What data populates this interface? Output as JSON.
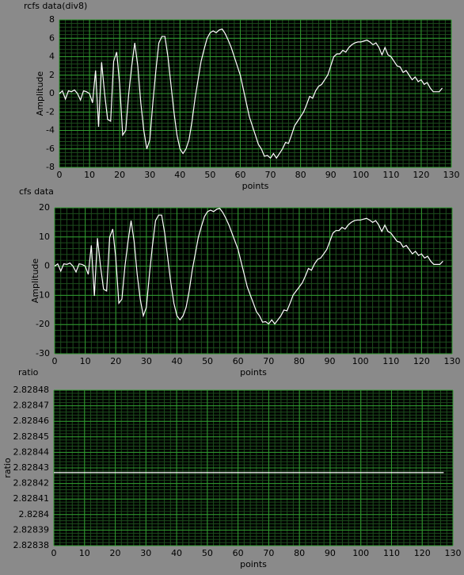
{
  "chart_data": [
    {
      "type": "line",
      "title": "rcfs data(div8)",
      "x_label": "points",
      "y_label": "Amplitude",
      "color": "#ffffff",
      "grid": true,
      "x": [
        0,
        1,
        2,
        3,
        4,
        5,
        6,
        7,
        8,
        9,
        10,
        11,
        12,
        13,
        14,
        15,
        16,
        17,
        18,
        19,
        20,
        21,
        22,
        23,
        24,
        25,
        26,
        27,
        28,
        29,
        30,
        31,
        32,
        33,
        34,
        35,
        36,
        37,
        38,
        39,
        40,
        41,
        42,
        43,
        44,
        45,
        46,
        47,
        48,
        49,
        50,
        51,
        52,
        53,
        54,
        55,
        56,
        57,
        58,
        59,
        60,
        61,
        62,
        63,
        64,
        65,
        66,
        67,
        68,
        69,
        70,
        71,
        72,
        73,
        74,
        75,
        76,
        77,
        78,
        79,
        80,
        81,
        82,
        83,
        84,
        85,
        86,
        87,
        88,
        89,
        90,
        91,
        92,
        93,
        94,
        95,
        96,
        97,
        98,
        99,
        100,
        101,
        102,
        103,
        104,
        105,
        106,
        107,
        108,
        109,
        110,
        111,
        112,
        113,
        114,
        115,
        116,
        117,
        118,
        119,
        120,
        121,
        122,
        123,
        124,
        125,
        126,
        127
      ],
      "values": [
        0,
        0.3,
        -0.6,
        0.3,
        0.2,
        0.4,
        0,
        -0.7,
        0.3,
        0.2,
        0,
        -1,
        2.5,
        -3.6,
        3.4,
        0,
        -2.8,
        -3,
        3.5,
        4.5,
        1,
        -4.5,
        -4,
        0,
        3,
        5.5,
        3,
        -1,
        -4,
        -6,
        -5,
        -1,
        2.5,
        5.5,
        6.2,
        6.2,
        4,
        1,
        -2,
        -4.5,
        -6,
        -6.5,
        -6,
        -5,
        -3,
        -0.5,
        1.5,
        3.5,
        4.8,
        6,
        6.6,
        6.8,
        6.6,
        6.9,
        7,
        6.5,
        5.8,
        5,
        4,
        3,
        2,
        0.5,
        -1,
        -2.5,
        -3.5,
        -4.5,
        -5.5,
        -6,
        -6.8,
        -6.7,
        -7,
        -6.5,
        -7,
        -6.5,
        -6,
        -5.3,
        -5.4,
        -4.5,
        -3.5,
        -3,
        -2.5,
        -2,
        -1.2,
        -0.3,
        -0.5,
        0.3,
        0.8,
        1,
        1.5,
        2,
        3,
        4,
        4.3,
        4.3,
        4.7,
        4.5,
        5,
        5.3,
        5.5,
        5.6,
        5.6,
        5.7,
        5.8,
        5.6,
        5.3,
        5.5,
        5,
        4.2,
        5,
        4.2,
        4,
        3.5,
        3,
        2.9,
        2.3,
        2.5,
        2,
        1.5,
        1.8,
        1.3,
        1.5,
        1,
        1.2,
        0.6,
        0.2,
        0.2,
        0.2,
        0.6
      ],
      "xlim": [
        0,
        130
      ],
      "xticks": [
        0,
        10,
        20,
        30,
        40,
        50,
        60,
        70,
        80,
        90,
        100,
        110,
        120,
        130
      ],
      "ylim": [
        -8,
        8
      ],
      "yticks": [
        -8,
        -6,
        -4,
        -2,
        0,
        2,
        4,
        6,
        8
      ]
    },
    {
      "type": "line",
      "title": "cfs data",
      "x_label": "points",
      "y_label": "Amplitude",
      "color": "#ffffff",
      "grid": true,
      "x": [
        0,
        1,
        2,
        3,
        4,
        5,
        6,
        7,
        8,
        9,
        10,
        11,
        12,
        13,
        14,
        15,
        16,
        17,
        18,
        19,
        20,
        21,
        22,
        23,
        24,
        25,
        26,
        27,
        28,
        29,
        30,
        31,
        32,
        33,
        34,
        35,
        36,
        37,
        38,
        39,
        40,
        41,
        42,
        43,
        44,
        45,
        46,
        47,
        48,
        49,
        50,
        51,
        52,
        53,
        54,
        55,
        56,
        57,
        58,
        59,
        60,
        61,
        62,
        63,
        64,
        65,
        66,
        67,
        68,
        69,
        70,
        71,
        72,
        73,
        74,
        75,
        76,
        77,
        78,
        79,
        80,
        81,
        82,
        83,
        84,
        85,
        86,
        87,
        88,
        89,
        90,
        91,
        92,
        93,
        94,
        95,
        96,
        97,
        98,
        99,
        100,
        101,
        102,
        103,
        104,
        105,
        106,
        107,
        108,
        109,
        110,
        111,
        112,
        113,
        114,
        115,
        116,
        117,
        118,
        119,
        120,
        121,
        122,
        123,
        124,
        125,
        126,
        127
      ],
      "values": [
        0,
        0.8,
        -1.7,
        0.8,
        0.6,
        1.1,
        0,
        -2,
        0.8,
        0.6,
        0,
        -2.8,
        7.1,
        -10.2,
        9.6,
        0,
        -7.9,
        -8.5,
        9.9,
        12.7,
        2.8,
        -12.7,
        -11.3,
        0,
        8.5,
        15.6,
        8.5,
        -2.8,
        -11.3,
        -17,
        -14.1,
        -2.8,
        7.1,
        15.6,
        17.5,
        17.5,
        11.3,
        2.8,
        -5.7,
        -12.7,
        -17,
        -18.4,
        -17,
        -14.1,
        -8.5,
        -1.4,
        4.2,
        9.9,
        13.6,
        17,
        18.7,
        19.2,
        18.7,
        19.5,
        19.8,
        18.4,
        16.4,
        14.1,
        11.3,
        8.5,
        5.7,
        1.4,
        -2.8,
        -7.1,
        -9.9,
        -12.7,
        -15.6,
        -17,
        -19.2,
        -19,
        -19.8,
        -18.4,
        -19.8,
        -18.4,
        -17,
        -15,
        -15.3,
        -12.7,
        -9.9,
        -8.5,
        -7.1,
        -5.7,
        -3.4,
        -0.8,
        -1.4,
        0.8,
        2.3,
        2.8,
        4.2,
        5.7,
        8.5,
        11.3,
        12.2,
        12.2,
        13.3,
        12.7,
        14.1,
        15,
        15.6,
        15.8,
        15.8,
        16.1,
        16.4,
        15.8,
        15,
        15.6,
        14.1,
        11.9,
        14.1,
        11.9,
        11.3,
        9.9,
        8.5,
        8.2,
        6.5,
        7.1,
        5.7,
        4.2,
        5.1,
        3.7,
        4.2,
        2.8,
        3.4,
        1.7,
        0.6,
        0.6,
        0.6,
        1.7
      ],
      "xlim": [
        0,
        130
      ],
      "xticks": [
        0,
        10,
        20,
        30,
        40,
        50,
        60,
        70,
        80,
        90,
        100,
        110,
        120,
        130
      ],
      "ylim": [
        -30,
        20
      ],
      "yticks": [
        -30,
        -20,
        -10,
        0,
        10,
        20
      ]
    },
    {
      "type": "line",
      "title": "ratio",
      "x_label": "points",
      "y_label": "ratio",
      "color": "#ffffff",
      "grid": true,
      "x": [
        0,
        1,
        2,
        3,
        4,
        5,
        6,
        7,
        8,
        9,
        10,
        11,
        12,
        13,
        14,
        15,
        16,
        17,
        18,
        19,
        20,
        21,
        22,
        23,
        24,
        25,
        26,
        27,
        28,
        29,
        30,
        31,
        32,
        33,
        34,
        35,
        36,
        37,
        38,
        39,
        40,
        41,
        42,
        43,
        44,
        45,
        46,
        47,
        48,
        49,
        50,
        51,
        52,
        53,
        54,
        55,
        56,
        57,
        58,
        59,
        60,
        61,
        62,
        63,
        64,
        65,
        66,
        67,
        68,
        69,
        70,
        71,
        72,
        73,
        74,
        75,
        76,
        77,
        78,
        79,
        80,
        81,
        82,
        83,
        84,
        85,
        86,
        87,
        88,
        89,
        90,
        91,
        92,
        93,
        94,
        95,
        96,
        97,
        98,
        99,
        100,
        101,
        102,
        103,
        104,
        105,
        106,
        107,
        108,
        109,
        110,
        111,
        112,
        113,
        114,
        115,
        116,
        117,
        118,
        119,
        120,
        121,
        122,
        123,
        124,
        125,
        126,
        127
      ],
      "values": [
        2.828427,
        2.828427,
        2.828427,
        2.828427,
        2.828427,
        2.828427,
        2.828427,
        2.828427,
        2.828427,
        2.828427,
        2.828427,
        2.828427,
        2.828427,
        2.828427,
        2.828427,
        2.828427,
        2.828427,
        2.828427,
        2.828427,
        2.828427,
        2.828427,
        2.828427,
        2.828427,
        2.828427,
        2.828427,
        2.828427,
        2.828427,
        2.828427,
        2.828427,
        2.828427,
        2.828427,
        2.828427,
        2.828427,
        2.828427,
        2.828427,
        2.828427,
        2.828427,
        2.828427,
        2.828427,
        2.828427,
        2.828427,
        2.828427,
        2.828427,
        2.828427,
        2.828427,
        2.828427,
        2.828427,
        2.828427,
        2.828427,
        2.828427,
        2.828427,
        2.828427,
        2.828427,
        2.828427,
        2.828427,
        2.828427,
        2.828427,
        2.828427,
        2.828427,
        2.828427,
        2.828427,
        2.828427,
        2.828427,
        2.828427,
        2.828427,
        2.828427,
        2.828427,
        2.828427,
        2.828427,
        2.828427,
        2.828427,
        2.828427,
        2.828427,
        2.828427,
        2.828427,
        2.828427,
        2.828427,
        2.828427,
        2.828427,
        2.828427,
        2.828427,
        2.828427,
        2.828427,
        2.828427,
        2.828427,
        2.828427,
        2.828427,
        2.828427,
        2.828427,
        2.828427,
        2.828427,
        2.828427,
        2.828427,
        2.828427,
        2.828427,
        2.828427,
        2.828427,
        2.828427,
        2.828427,
        2.828427,
        2.828427,
        2.828427,
        2.828427,
        2.828427,
        2.828427,
        2.828427,
        2.828427,
        2.828427,
        2.828427,
        2.828427,
        2.828427,
        2.828427,
        2.828427,
        2.828427,
        2.828427,
        2.828427,
        2.828427,
        2.828427,
        2.828427,
        2.828427,
        2.828427,
        2.828427,
        2.828427,
        2.828427,
        2.828427,
        2.828427,
        2.828427,
        2.828427
      ],
      "xlim": [
        0,
        130
      ],
      "xticks": [
        0,
        10,
        20,
        30,
        40,
        50,
        60,
        70,
        80,
        90,
        100,
        110,
        120,
        130
      ],
      "ylim": [
        2.82838,
        2.82848
      ],
      "yticks": [
        2.82838,
        2.82839,
        2.8284,
        2.82841,
        2.82842,
        2.82843,
        2.82844,
        2.82845,
        2.82846,
        2.82847,
        2.82848
      ]
    }
  ]
}
